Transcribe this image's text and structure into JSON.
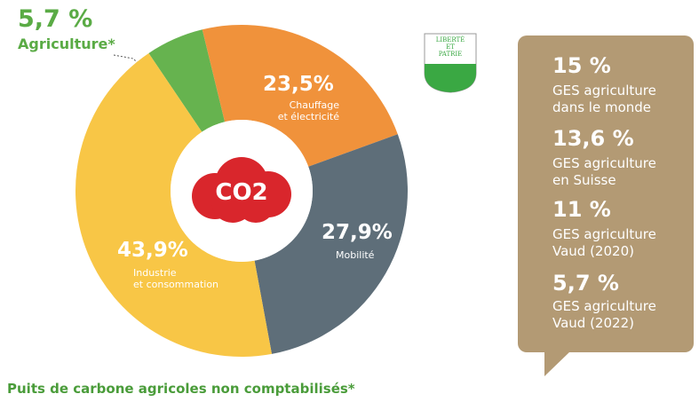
{
  "chart_data": {
    "type": "pie",
    "categories": [
      "Agriculture*",
      "Chauffage\net électricité",
      "Mobilité",
      "Industrie\net consommation"
    ],
    "values": [
      5.7,
      23.5,
      27.9,
      43.9
    ],
    "value_labels": [
      "5,7 %",
      "23,5%",
      "27,9%",
      "43,9%"
    ],
    "colors": [
      "#66b34f",
      "#f0923b",
      "#5e6e79",
      "#f8c646"
    ],
    "center_label": "CO2"
  },
  "emblem": "LIBERTÉ\nET\nPATRIE",
  "sidebar": [
    {
      "value": "15 %",
      "text": "GES agriculture\ndans le monde"
    },
    {
      "value": "13,6 %",
      "text": "GES agriculture\nen Suisse"
    },
    {
      "value": "11 %",
      "text": "GES agriculture\nVaud (2020)"
    },
    {
      "value": "5,7 %",
      "text": "GES agriculture\nVaud (2022)"
    }
  ],
  "footer": "Puits de carbone agricoles non comptabilisés*"
}
